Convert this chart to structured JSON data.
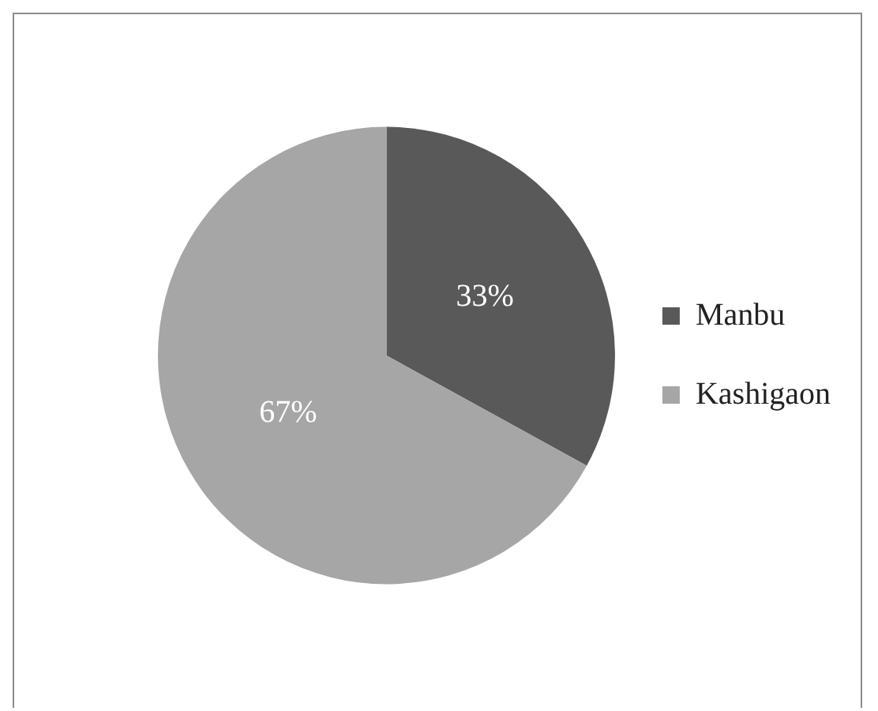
{
  "chart_data": {
    "type": "pie",
    "categories": [
      "Manbu",
      "Kashigaon"
    ],
    "values": [
      33,
      67
    ],
    "colors": [
      "#595959",
      "#a6a6a6"
    ],
    "value_labels": [
      "33%",
      "67%"
    ],
    "legend": "right"
  }
}
